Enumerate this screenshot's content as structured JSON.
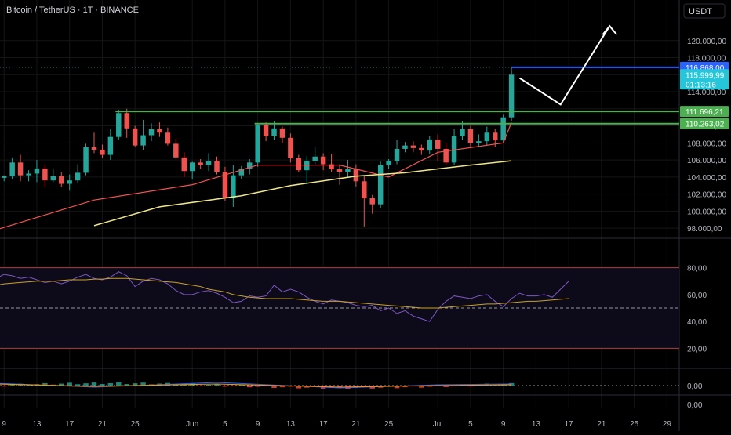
{
  "header": {
    "title": "Bitcoin / TetherUS · 1T · BINANCE",
    "currency": "USDT"
  },
  "colors": {
    "background": "#000000",
    "up": "#26a69a",
    "down": "#ef5350",
    "grid": "#151515",
    "axis_text": "#b2b5be",
    "support": "#4caf50",
    "resistance": "#2962ff",
    "ma_yellow": "#f0e68c",
    "trail_red": "#ef5350",
    "rsi_line": "#7e57c2",
    "rsi_ma": "#c9a227",
    "projection": "#ffffff"
  },
  "chart_data": [
    {
      "type": "candlestick",
      "panel": "price",
      "ylim": [
        97000,
        122000
      ],
      "y_ticks": [
        "98.000,00",
        "100.000,00",
        "102.000,00",
        "104.000,00",
        "106.000,00",
        "108.000,00",
        "110.000,00",
        "112.000,00",
        "114.000,00",
        "116.000,00",
        "118.000,00",
        "120.000,00"
      ],
      "x_ticks": [
        "9",
        "13",
        "17",
        "21",
        "25",
        "Jun",
        "5",
        "9",
        "13",
        "17",
        "21",
        "25",
        "Jul",
        "5",
        "9",
        "13",
        "17",
        "21",
        "25",
        "29"
      ],
      "x_tick_days": [
        9,
        13,
        17,
        21,
        25,
        32,
        36,
        40,
        44,
        48,
        52,
        56,
        62,
        66,
        70,
        74,
        78,
        82,
        86,
        90
      ],
      "x_range_days": [
        8.5,
        91.5
      ],
      "price_labels": [
        {
          "text": "116.868,00",
          "value": 116868,
          "color": "#2962ff"
        },
        {
          "text": "115.999,99",
          "value": 116000,
          "color": "#26c6da",
          "sub": "01:13:16"
        },
        {
          "text": "111.696,21",
          "value": 111696,
          "color": "#4caf50"
        },
        {
          "text": "110.263,02",
          "value": 110263,
          "color": "#4caf50"
        }
      ],
      "candles": [
        [
          8,
          104800,
          105300,
          97400,
          97800
        ],
        [
          9,
          103900,
          104200,
          103500,
          104100
        ],
        [
          10,
          104100,
          106300,
          103800,
          105700
        ],
        [
          11,
          105700,
          106600,
          103500,
          104200
        ],
        [
          12,
          104200,
          104800,
          103500,
          104400
        ],
        [
          13,
          104400,
          106000,
          103400,
          105000
        ],
        [
          14,
          105000,
          105500,
          102800,
          103600
        ],
        [
          15,
          103600,
          104900,
          103400,
          104100
        ],
        [
          16,
          104100,
          104600,
          102800,
          103200
        ],
        [
          17,
          103200,
          104300,
          102400,
          103600
        ],
        [
          18,
          103600,
          105500,
          103300,
          104500
        ],
        [
          19,
          104500,
          107900,
          104200,
          107500
        ],
        [
          20,
          107500,
          109200,
          106800,
          107200
        ],
        [
          21,
          107200,
          107800,
          106200,
          106600
        ],
        [
          22,
          106600,
          109600,
          106000,
          108700
        ],
        [
          23,
          108700,
          111900,
          108400,
          111500
        ],
        [
          24,
          111500,
          112000,
          108600,
          109700
        ],
        [
          25,
          109700,
          110000,
          107500,
          107700
        ],
        [
          26,
          107700,
          110700,
          107200,
          108900
        ],
        [
          27,
          108900,
          110300,
          108200,
          109600
        ],
        [
          28,
          109600,
          110400,
          108700,
          109200
        ],
        [
          29,
          109200,
          109800,
          107700,
          107900
        ],
        [
          30,
          107900,
          108500,
          106100,
          106300
        ],
        [
          31,
          106300,
          106900,
          104000,
          104700
        ],
        [
          32,
          104700,
          105800,
          103700,
          105700
        ],
        [
          33,
          105700,
          106100,
          104900,
          105400
        ],
        [
          34,
          105400,
          106800,
          104700,
          105900
        ],
        [
          35,
          105900,
          106400,
          104300,
          104600
        ],
        [
          36,
          104600,
          105200,
          101200,
          101500
        ],
        [
          37,
          101500,
          105400,
          100500,
          104200
        ],
        [
          38,
          104200,
          105300,
          103800,
          105000
        ],
        [
          39,
          105000,
          106100,
          104300,
          105700
        ],
        [
          40,
          105700,
          110300,
          105200,
          110100
        ],
        [
          41,
          110100,
          110400,
          108200,
          108800
        ],
        [
          42,
          108800,
          110500,
          108400,
          109700
        ],
        [
          43,
          109700,
          109900,
          108000,
          108600
        ],
        [
          44,
          108600,
          109100,
          105700,
          106200
        ],
        [
          45,
          106200,
          106600,
          104600,
          104800
        ],
        [
          46,
          104800,
          106500,
          103200,
          105900
        ],
        [
          47,
          105900,
          107500,
          105400,
          106400
        ],
        [
          48,
          106400,
          106800,
          104800,
          105500
        ],
        [
          49,
          105500,
          106700,
          104600,
          104900
        ],
        [
          50,
          104900,
          105500,
          103100,
          104600
        ],
        [
          51,
          104600,
          106000,
          103900,
          104900
        ],
        [
          52,
          104900,
          105500,
          102900,
          103500
        ],
        [
          53,
          103500,
          104200,
          98200,
          101500
        ],
        [
          54,
          101500,
          101900,
          99700,
          100800
        ],
        [
          55,
          100800,
          105800,
          100300,
          105400
        ],
        [
          56,
          105400,
          106100,
          104900,
          105900
        ],
        [
          57,
          105900,
          108400,
          105500,
          107300
        ],
        [
          58,
          107300,
          108100,
          106900,
          107700
        ],
        [
          59,
          107700,
          108200,
          106900,
          107400
        ],
        [
          60,
          107400,
          107800,
          106600,
          107100
        ],
        [
          61,
          107100,
          108800,
          106700,
          108400
        ],
        [
          62,
          108400,
          109000,
          105900,
          107300
        ],
        [
          63,
          107300,
          108000,
          105400,
          105700
        ],
        [
          64,
          105700,
          109600,
          105400,
          108800
        ],
        [
          65,
          108800,
          110500,
          108400,
          109600
        ],
        [
          66,
          109600,
          110000,
          107500,
          108000
        ],
        [
          67,
          108000,
          109000,
          107500,
          108200
        ],
        [
          68,
          108200,
          109900,
          107700,
          109200
        ],
        [
          69,
          109200,
          109600,
          107500,
          108300
        ],
        [
          70,
          108300,
          111300,
          108000,
          111000
        ],
        [
          71,
          111000,
          116900,
          110600,
          116000
        ]
      ],
      "trail_red": [
        [
          8,
          97800
        ],
        [
          20,
          101300
        ],
        [
          32,
          103100
        ],
        [
          40,
          105400
        ],
        [
          50,
          105400
        ],
        [
          56,
          104000
        ],
        [
          62,
          106900
        ],
        [
          70,
          108000
        ],
        [
          71,
          110400
        ]
      ],
      "ma_yellow": [
        [
          20,
          98300
        ],
        [
          28,
          100500
        ],
        [
          38,
          101800
        ],
        [
          44,
          103000
        ],
        [
          52,
          104100
        ],
        [
          58,
          104500
        ],
        [
          66,
          105400
        ],
        [
          71,
          105900
        ]
      ],
      "support_lines": [
        {
          "value": 111696,
          "start": 23
        },
        {
          "value": 110263,
          "start": 40
        }
      ],
      "resistance_line": {
        "value": 116868,
        "start": 71
      },
      "projection": [
        [
          72,
          115600
        ],
        [
          77,
          112500
        ],
        [
          83,
          121700
        ]
      ]
    },
    {
      "type": "line",
      "panel": "rsi",
      "ylim": [
        15,
        85
      ],
      "y_ticks": [
        "20,00",
        "40,00",
        "60,00",
        "80,00"
      ],
      "band_upper": 80,
      "band_lower": 20,
      "mid": 50,
      "rsi_x_start": 8,
      "rsi": [
        72,
        75,
        74,
        72,
        73,
        71,
        69,
        70,
        68,
        70,
        73,
        75,
        72,
        71,
        73,
        77,
        74,
        66,
        70,
        72,
        71,
        68,
        63,
        60,
        60,
        62,
        63,
        61,
        58,
        54,
        55,
        59,
        58,
        59,
        67,
        62,
        64,
        62,
        58,
        55,
        53,
        56,
        55,
        54,
        52,
        51,
        52,
        48,
        50,
        46,
        48,
        44,
        42,
        40,
        49,
        55,
        59,
        58,
        57,
        59,
        60,
        55,
        51,
        57,
        61,
        59,
        59,
        60,
        58,
        64,
        70
      ],
      "rsi_ma": [
        67,
        68,
        68.5,
        69,
        69.5,
        70,
        70,
        70,
        70.5,
        71,
        71,
        71,
        71.5,
        71.5,
        72,
        72,
        72,
        71.5,
        71,
        70.5,
        70,
        69.5,
        69,
        68,
        67,
        66,
        64,
        63,
        62,
        60,
        59,
        58,
        57.5,
        57,
        57,
        57,
        57,
        56.5,
        56,
        55.5,
        55,
        55,
        55,
        54.5,
        54,
        53.5,
        53,
        52.5,
        52,
        51.5,
        51,
        50.5,
        50,
        50,
        50,
        50.5,
        51,
        51.5,
        52,
        52.5,
        53,
        53,
        53.5,
        54,
        54.5,
        55,
        55,
        55.5,
        56,
        56.5,
        57
      ]
    },
    {
      "type": "histogram",
      "panel": "macd",
      "ylim": [
        -1,
        1
      ],
      "y_ticks": [
        "0,00"
      ],
      "extra_tick": "0,00"
    }
  ]
}
